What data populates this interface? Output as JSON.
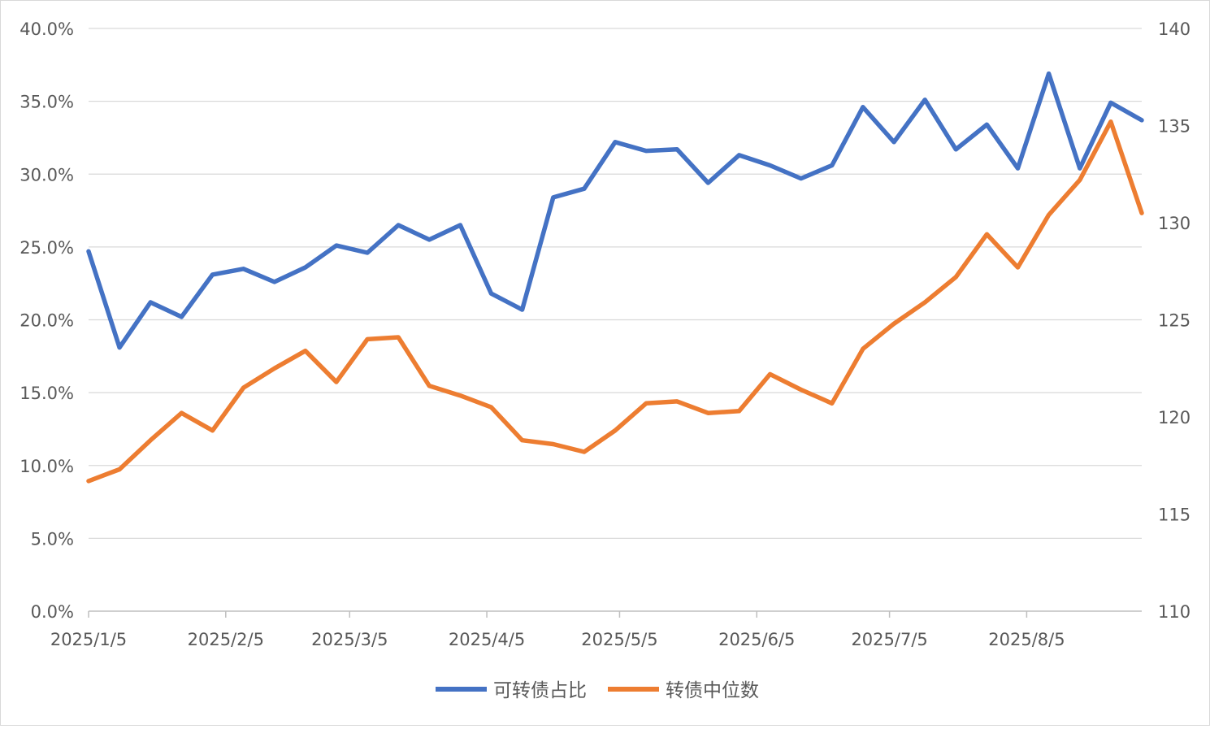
{
  "chart_data": {
    "type": "line",
    "x": [
      "2025/1/5",
      "2025/1/12",
      "2025/1/19",
      "2025/1/26",
      "2025/2/2",
      "2025/2/9",
      "2025/2/16",
      "2025/2/23",
      "2025/3/2",
      "2025/3/9",
      "2025/3/16",
      "2025/3/23",
      "2025/3/30",
      "2025/4/6",
      "2025/4/13",
      "2025/4/20",
      "2025/4/27",
      "2025/5/4",
      "2025/5/11",
      "2025/5/18",
      "2025/5/25",
      "2025/6/1",
      "2025/6/8",
      "2025/6/15",
      "2025/6/22",
      "2025/6/29",
      "2025/7/6",
      "2025/7/13",
      "2025/7/20",
      "2025/7/27",
      "2025/8/3",
      "2025/8/10",
      "2025/8/17",
      "2025/8/24",
      "2025/8/31"
    ],
    "x_tick_labels": [
      "2025/1/5",
      "2025/2/5",
      "2025/3/5",
      "2025/4/5",
      "2025/5/5",
      "2025/6/5",
      "2025/7/5",
      "2025/8/5"
    ],
    "series": [
      {
        "name": "可转债占比",
        "axis": "left",
        "color": "#4472C4",
        "values": [
          24.7,
          18.1,
          21.2,
          20.2,
          23.1,
          23.5,
          22.6,
          23.6,
          25.1,
          24.6,
          26.5,
          25.5,
          26.5,
          21.8,
          20.7,
          28.4,
          29.0,
          32.2,
          31.6,
          31.7,
          29.4,
          31.3,
          30.6,
          29.7,
          30.6,
          34.6,
          32.2,
          35.1,
          31.7,
          33.4,
          30.4,
          36.9,
          30.4,
          34.9,
          33.7
        ]
      },
      {
        "name": "转债中位数",
        "axis": "right",
        "color": "#ED7D31",
        "values": [
          116.7,
          117.3,
          118.8,
          120.2,
          119.3,
          121.5,
          122.5,
          123.4,
          121.8,
          124.0,
          124.1,
          121.6,
          121.1,
          120.5,
          118.8,
          118.6,
          118.2,
          119.3,
          120.7,
          120.8,
          120.2,
          120.3,
          122.2,
          121.4,
          120.7,
          123.5,
          124.8,
          125.9,
          127.2,
          129.4,
          127.7,
          130.4,
          132.2,
          135.2,
          130.5
        ]
      }
    ],
    "left_axis": {
      "min": 0,
      "max": 40,
      "step": 5,
      "tick_labels": [
        "0.0%",
        "5.0%",
        "10.0%",
        "15.0%",
        "20.0%",
        "25.0%",
        "30.0%",
        "35.0%",
        "40.0%"
      ]
    },
    "right_axis": {
      "min": 110,
      "max": 140,
      "step": 5,
      "tick_labels": [
        "110",
        "115",
        "120",
        "125",
        "130",
        "135",
        "140"
      ]
    },
    "grid": true,
    "legend_position": "bottom"
  }
}
